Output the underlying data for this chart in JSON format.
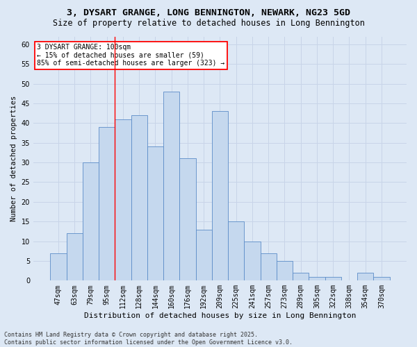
{
  "title1": "3, DYSART GRANGE, LONG BENNINGTON, NEWARK, NG23 5GD",
  "title2": "Size of property relative to detached houses in Long Bennington",
  "xlabel": "Distribution of detached houses by size in Long Bennington",
  "ylabel": "Number of detached properties",
  "categories": [
    "47sqm",
    "63sqm",
    "79sqm",
    "95sqm",
    "112sqm",
    "128sqm",
    "144sqm",
    "160sqm",
    "176sqm",
    "192sqm",
    "209sqm",
    "225sqm",
    "241sqm",
    "257sqm",
    "273sqm",
    "289sqm",
    "305sqm",
    "322sqm",
    "338sqm",
    "354sqm",
    "370sqm"
  ],
  "values": [
    7,
    12,
    30,
    39,
    41,
    42,
    34,
    48,
    31,
    13,
    43,
    15,
    10,
    7,
    5,
    2,
    1,
    1,
    0,
    2,
    1
  ],
  "bar_color": "#c5d8ee",
  "bar_edge_color": "#5b8cc8",
  "bar_edge_width": 0.6,
  "grid_color": "#c8d4e8",
  "bg_color": "#dde8f5",
  "annotation_text": "3 DYSART GRANGE: 100sqm\n← 15% of detached houses are smaller (59)\n85% of semi-detached houses are larger (323) →",
  "annotation_box_color": "white",
  "annotation_box_edge": "red",
  "ref_line_x": 3.5,
  "ref_line_color": "red",
  "ylim": [
    0,
    62
  ],
  "yticks": [
    0,
    5,
    10,
    15,
    20,
    25,
    30,
    35,
    40,
    45,
    50,
    55,
    60
  ],
  "footer1": "Contains HM Land Registry data © Crown copyright and database right 2025.",
  "footer2": "Contains public sector information licensed under the Open Government Licence v3.0.",
  "title1_fontsize": 9.5,
  "title2_fontsize": 8.5,
  "xlabel_fontsize": 8,
  "ylabel_fontsize": 7.5,
  "tick_fontsize": 7,
  "footer_fontsize": 6,
  "annot_fontsize": 7
}
